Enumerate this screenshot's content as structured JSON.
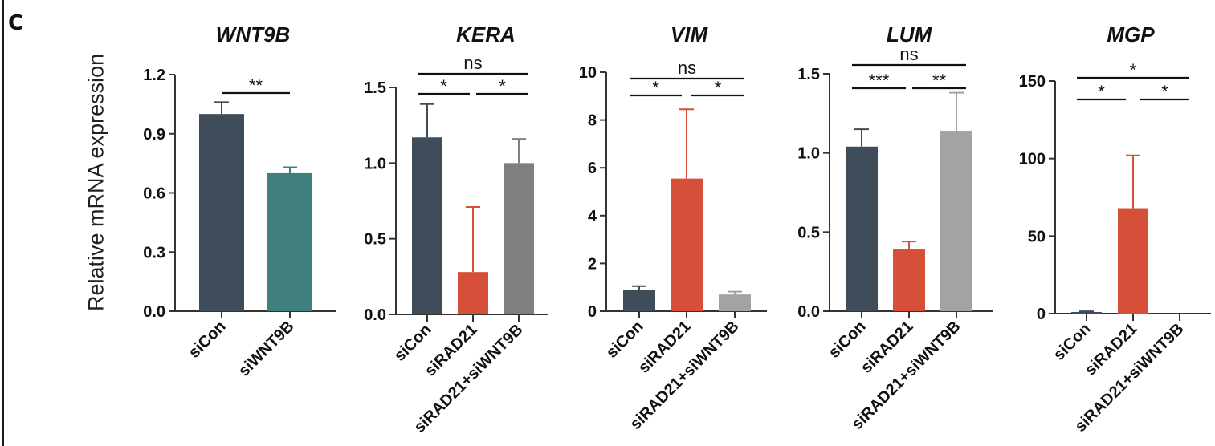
{
  "figure": {
    "panel_letter": "C",
    "shared_ylabel": "Relative mRNA expression"
  },
  "colors": {
    "siCon": "#3f4c59",
    "siWNT9B": "#417f7c",
    "siRAD21": "#d64f38",
    "siRAD21+siWNT9B_KERA": "#7f7f7f",
    "siRAD21+siWNT9B": "#a3a3a6",
    "axis": "#333333"
  },
  "chart_data": [
    {
      "type": "bar",
      "title": "WNT9B",
      "ylabel": "Relative mRNA expression",
      "categories": [
        "siCon",
        "siWNT9B"
      ],
      "values": [
        1.0,
        0.7
      ],
      "error_upper": [
        1.06,
        0.73
      ],
      "colors": [
        "#3f4c59",
        "#417f7c"
      ],
      "ylim": [
        0,
        1.2
      ],
      "yticks": [
        "0.0",
        "0.3",
        "0.6",
        "0.9",
        "1.2"
      ],
      "ytick_values": [
        0,
        0.3,
        0.6,
        0.9,
        1.2
      ],
      "significance": [
        {
          "from": 0,
          "to": 1,
          "label": "**",
          "level": 1
        }
      ]
    },
    {
      "type": "bar",
      "title": "KERA",
      "categories": [
        "siCon",
        "siRAD21",
        "siRAD21+siWNT9B"
      ],
      "values": [
        1.17,
        0.28,
        1.0
      ],
      "error_upper": [
        1.39,
        0.71,
        1.16
      ],
      "colors": [
        "#3f4c59",
        "#d64f38",
        "#7f7f7f"
      ],
      "ylim": [
        0,
        1.5
      ],
      "yticks": [
        "0.0",
        "0.5",
        "1.0",
        "1.5"
      ],
      "ytick_values": [
        0,
        0.5,
        1.0,
        1.5
      ],
      "significance": [
        {
          "from": 0,
          "to": 2,
          "label": "ns",
          "level": 2
        },
        {
          "from": 0,
          "to": 1,
          "label": "*",
          "level": 1
        },
        {
          "from": 1,
          "to": 2,
          "label": "*",
          "level": 1
        }
      ]
    },
    {
      "type": "bar",
      "title": "VIM",
      "categories": [
        "siCon",
        "siRAD21",
        "siRAD21+siWNT9B"
      ],
      "values": [
        0.9,
        5.55,
        0.7
      ],
      "error_upper": [
        1.05,
        8.45,
        0.82
      ],
      "colors": [
        "#3f4c59",
        "#d64f38",
        "#a3a3a6"
      ],
      "ylim": [
        0,
        10
      ],
      "yticks": [
        "0",
        "2",
        "4",
        "6",
        "8",
        "10"
      ],
      "ytick_values": [
        0,
        2,
        4,
        6,
        8,
        10
      ],
      "significance": [
        {
          "from": 0,
          "to": 2,
          "label": "ns",
          "level": 2
        },
        {
          "from": 0,
          "to": 1,
          "label": "*",
          "level": 1
        },
        {
          "from": 1,
          "to": 2,
          "label": "*",
          "level": 1
        }
      ]
    },
    {
      "type": "bar",
      "title": "LUM",
      "categories": [
        "siCon",
        "siRAD21",
        "siRAD21+siWNT9B"
      ],
      "values": [
        1.04,
        0.39,
        1.14
      ],
      "error_upper": [
        1.15,
        0.44,
        1.38
      ],
      "colors": [
        "#3f4c59",
        "#d64f38",
        "#a3a3a6"
      ],
      "ylim": [
        0,
        1.5
      ],
      "yticks": [
        "0.0",
        "0.5",
        "1.0",
        "1.5"
      ],
      "ytick_values": [
        0,
        0.5,
        1.0,
        1.5
      ],
      "significance": [
        {
          "from": 0,
          "to": 2,
          "label": "ns",
          "level": 2
        },
        {
          "from": 0,
          "to": 1,
          "label": "***",
          "level": 1
        },
        {
          "from": 1,
          "to": 2,
          "label": "**",
          "level": 1
        }
      ]
    },
    {
      "type": "bar",
      "title": "MGP",
      "categories": [
        "siCon",
        "siRAD21",
        "siRAD21+siWNT9B"
      ],
      "values": [
        0.8,
        68,
        0
      ],
      "error_upper": [
        1.5,
        102,
        0
      ],
      "colors": [
        "#3f4c59",
        "#d64f38",
        "#a3a3a6"
      ],
      "ylim": [
        0,
        150
      ],
      "yticks": [
        "0",
        "50",
        "100",
        "150"
      ],
      "ytick_values": [
        0,
        50,
        100,
        150
      ],
      "significance": [
        {
          "from": 0,
          "to": 2,
          "label": "*",
          "level": 2
        },
        {
          "from": 0,
          "to": 1,
          "label": "*",
          "level": 1
        },
        {
          "from": 1,
          "to": 2,
          "label": "*",
          "level": 1
        }
      ]
    }
  ]
}
